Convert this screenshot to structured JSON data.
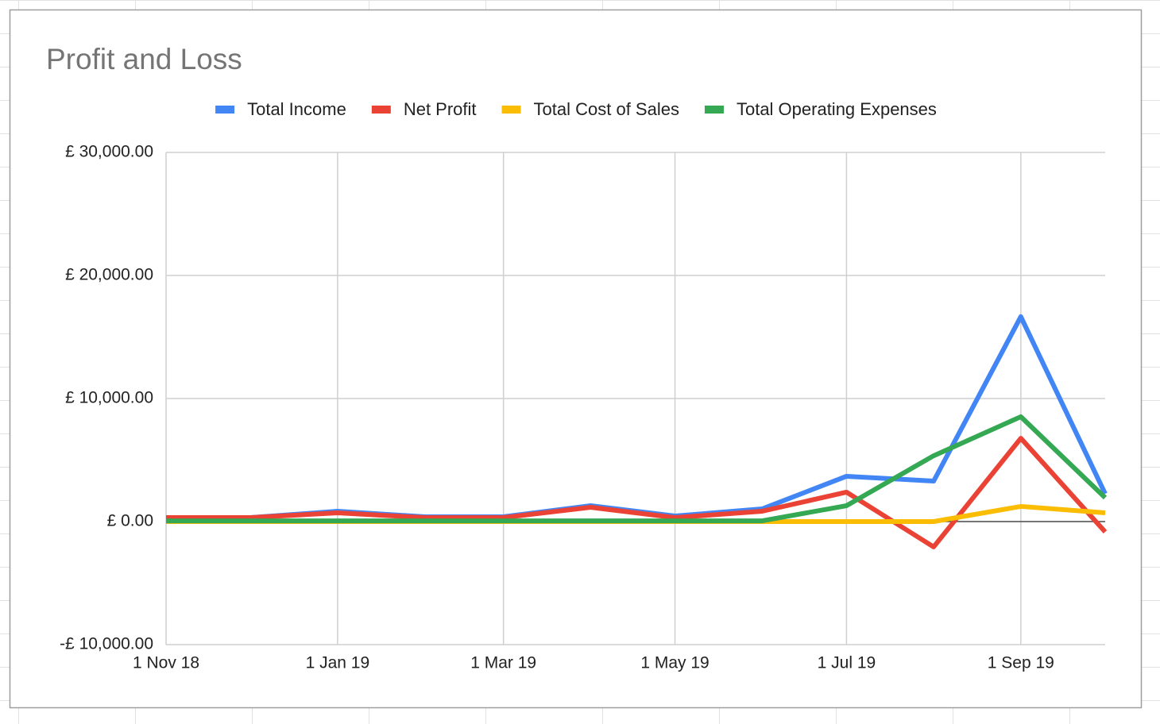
{
  "chart_data": {
    "type": "line",
    "title": "Profit and Loss",
    "x": [
      "2018-11-01",
      "2018-12-01",
      "2019-01-01",
      "2019-02-01",
      "2019-03-01",
      "2019-04-01",
      "2019-05-01",
      "2019-06-01",
      "2019-07-01",
      "2019-08-01",
      "2019-09-01",
      "2019-10-01"
    ],
    "series": [
      {
        "name": "Total Income",
        "color": "#4285f4",
        "values": [
          320,
          320,
          840,
          390,
          390,
          1290,
          450,
          1030,
          3680,
          3290,
          16650,
          2260
        ]
      },
      {
        "name": "Net Profit",
        "color": "#ea4335",
        "values": [
          320,
          320,
          710,
          320,
          320,
          1160,
          320,
          840,
          2390,
          -2060,
          6770,
          -840
        ]
      },
      {
        "name": "Total Cost of Sales",
        "color": "#fbbc04",
        "values": [
          0,
          0,
          0,
          0,
          0,
          0,
          0,
          0,
          0,
          0,
          1230,
          710
        ]
      },
      {
        "name": "Total Operating Expenses",
        "color": "#34a853",
        "values": [
          60,
          60,
          60,
          60,
          60,
          60,
          60,
          60,
          1290,
          5350,
          8520,
          1940
        ]
      }
    ],
    "xlim": [
      "2018-11-01",
      "2019-10-01"
    ],
    "xticks": [
      {
        "value": "2018-11-01",
        "label": "1 Nov 18"
      },
      {
        "value": "2019-01-01",
        "label": "1 Jan 19"
      },
      {
        "value": "2019-03-01",
        "label": "1 Mar 19"
      },
      {
        "value": "2019-05-01",
        "label": "1 May 19"
      },
      {
        "value": "2019-07-01",
        "label": "1 Jul 19"
      },
      {
        "value": "2019-09-01",
        "label": "1 Sep 19"
      }
    ],
    "ylim": [
      -10000,
      30000
    ],
    "yticks": [
      {
        "value": -10000,
        "label": "-£ 10,000.00"
      },
      {
        "value": 0,
        "label": "£ 0.00"
      },
      {
        "value": 10000,
        "label": "£ 10,000.00"
      },
      {
        "value": 20000,
        "label": "£ 20,000.00"
      },
      {
        "value": 30000,
        "label": "£ 30,000.00"
      }
    ],
    "grid": true,
    "legend": "top"
  }
}
